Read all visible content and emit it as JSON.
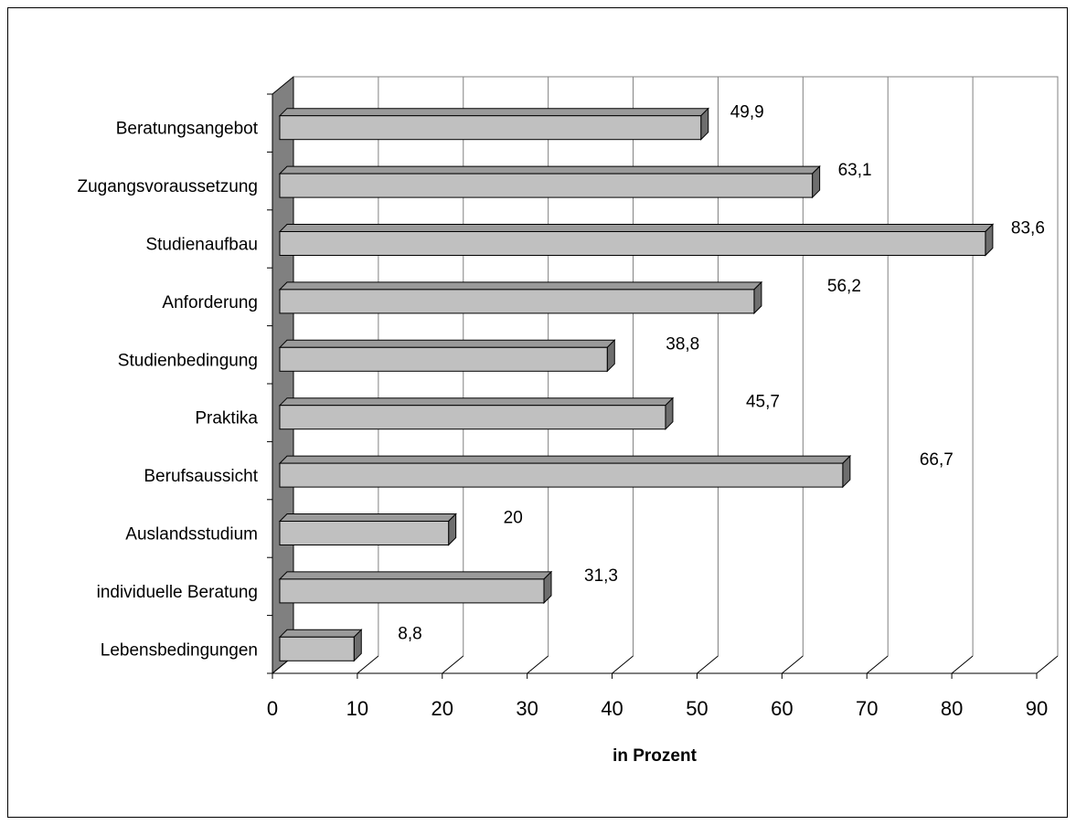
{
  "chart_data": {
    "type": "bar",
    "orientation": "horizontal",
    "style": "3d",
    "categories": [
      "Beratungsangebot",
      "Zugangsvoraussetzung",
      "Studienaufbau",
      "Anforderung",
      "Studienbedingung",
      "Praktika",
      "Berufsaussicht",
      "Auslandsstudium",
      "individuelle Beratung",
      "Lebensbedingungen"
    ],
    "values": [
      49.9,
      63.1,
      83.6,
      56.2,
      38.8,
      45.7,
      66.7,
      20,
      31.3,
      8.8
    ],
    "value_labels": [
      "49,9",
      "63,1",
      "83,6",
      "56,2",
      "38,8",
      "45,7",
      "66,7",
      "20",
      "31,3",
      "8,8"
    ],
    "xlabel": "in Prozent",
    "xlim": [
      0,
      90
    ],
    "xticks": [
      "0",
      "10",
      "20",
      "30",
      "40",
      "50",
      "60",
      "70",
      "80",
      "90"
    ],
    "grid": true,
    "legend": "none",
    "colors": {
      "bar_front": "#c0c0c0",
      "bar_top": "#9a9a9a",
      "bar_side": "#6e6e6e",
      "floor": "#808080",
      "grid": "#808080"
    }
  }
}
